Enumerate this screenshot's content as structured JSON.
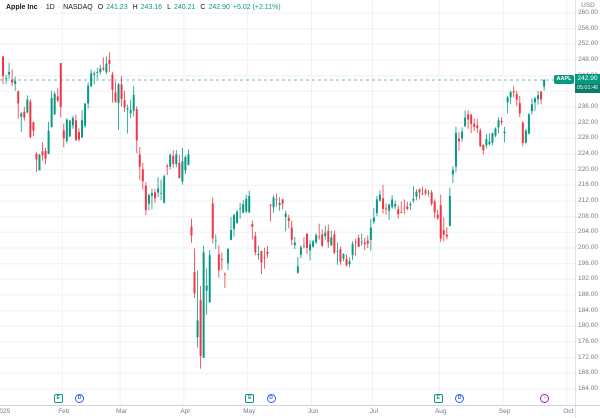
{
  "header": {
    "name": "Apple Inc",
    "separator": "·",
    "timeframe": "1D",
    "exchange": "NASDAQ",
    "ohlc": [
      {
        "k": "O",
        "v": "241.23"
      },
      {
        "k": "H",
        "v": "243.16"
      },
      {
        "k": "L",
        "v": "240.21"
      },
      {
        "k": "C",
        "v": "242.90"
      }
    ],
    "change": "+5.02 (+2.11%)"
  },
  "quote": {
    "symbol": "AAPL",
    "last": "242.90",
    "countdown": "05:01:46",
    "currency": "USD",
    "direction": "up"
  },
  "colors": {
    "up": "#089981",
    "down": "#f23645",
    "grid": "#eef1f6",
    "axis_text": "#787b86",
    "price_line": "#089981",
    "tag_bg": "#089981"
  },
  "chart_data": {
    "type": "candlestick",
    "title": "Apple Inc · 1D · NASDAQ",
    "symbol": "AAPL",
    "currency": "USD",
    "ylim": [
      164,
      263
    ],
    "grid": true,
    "last_price": 242.9,
    "y_ticks": [
      260,
      256,
      252,
      248,
      244,
      240,
      236,
      232,
      228,
      224,
      220,
      216,
      212,
      208,
      204,
      200,
      196,
      192,
      188,
      184,
      180,
      176,
      172,
      168,
      164
    ],
    "x_ticks": [
      {
        "label": "2025",
        "index": 0,
        "gridline": false
      },
      {
        "label": "Feb",
        "index": 20,
        "gridline": true
      },
      {
        "label": "Mar",
        "index": 39,
        "gridline": true
      },
      {
        "label": "Apr",
        "index": 60,
        "gridline": true
      },
      {
        "label": "May",
        "index": 81,
        "gridline": true
      },
      {
        "label": "Jun",
        "index": 102,
        "gridline": true
      },
      {
        "label": "Jul",
        "index": 122,
        "gridline": true
      },
      {
        "label": "Aug",
        "index": 144,
        "gridline": true
      },
      {
        "label": "Sep",
        "index": 165,
        "gridline": true
      },
      {
        "label": "Oct",
        "index": 186,
        "gridline": true
      }
    ],
    "events": [
      {
        "type": "earnings",
        "index": 18
      },
      {
        "type": "dividend",
        "index": 25
      },
      {
        "type": "earnings",
        "index": 81
      },
      {
        "type": "dividend",
        "index": 88
      },
      {
        "type": "earnings",
        "index": 143
      },
      {
        "type": "dividend",
        "index": 150
      },
      {
        "type": "upcoming-earnings",
        "index": 178
      }
    ],
    "candles": [
      [
        "Jan 2",
        248.9,
        249.1,
        241.8,
        243.9
      ],
      [
        "Jan 3",
        243.4,
        244.2,
        241.9,
        243.4
      ],
      [
        "Jan 6",
        244.3,
        247.3,
        243.2,
        245.0
      ],
      [
        "Jan 7",
        243.0,
        245.6,
        241.4,
        242.2
      ],
      [
        "Jan 8",
        241.9,
        243.7,
        240.1,
        242.7
      ],
      [
        "Jan 10",
        240.0,
        240.2,
        233.0,
        236.9
      ],
      [
        "Jan 13",
        233.5,
        234.7,
        229.7,
        234.4
      ],
      [
        "Jan 14",
        234.8,
        236.1,
        232.5,
        233.3
      ],
      [
        "Jan 15",
        234.6,
        239.0,
        234.4,
        237.9
      ],
      [
        "Jan 16",
        237.4,
        238.0,
        228.0,
        228.3
      ],
      [
        "Jan 17",
        232.1,
        232.3,
        228.5,
        230.0
      ],
      [
        "Jan 21",
        224.0,
        224.4,
        219.4,
        222.6
      ],
      [
        "Jan 22",
        219.8,
        224.1,
        219.8,
        223.8
      ],
      [
        "Jan 23",
        224.7,
        227.0,
        222.3,
        223.7
      ],
      [
        "Jan 24",
        224.8,
        225.6,
        221.4,
        222.8
      ],
      [
        "Jan 27",
        224.0,
        232.2,
        224.0,
        229.9
      ],
      [
        "Jan 28",
        230.9,
        240.2,
        230.8,
        238.3
      ],
      [
        "Jan 29",
        234.1,
        239.9,
        234.0,
        239.4
      ],
      [
        "Jan 30",
        238.7,
        240.8,
        237.2,
        237.6
      ],
      [
        "Jan 31",
        247.2,
        247.2,
        233.4,
        236.0
      ],
      [
        "Feb 3",
        230.0,
        231.8,
        225.7,
        228.0
      ],
      [
        "Feb 4",
        227.3,
        233.1,
        226.7,
        232.8
      ],
      [
        "Feb 5",
        228.5,
        232.7,
        228.3,
        232.5
      ],
      [
        "Feb 6",
        231.3,
        233.8,
        230.4,
        233.2
      ],
      [
        "Feb 7",
        232.6,
        234.0,
        227.3,
        227.6
      ],
      [
        "Feb 10",
        229.6,
        230.6,
        227.2,
        227.7
      ],
      [
        "Feb 11",
        228.2,
        235.2,
        228.1,
        232.6
      ],
      [
        "Feb 12",
        231.2,
        237.0,
        230.7,
        236.9
      ],
      [
        "Feb 13",
        236.9,
        242.3,
        235.6,
        241.5
      ],
      [
        "Feb 14",
        241.3,
        245.6,
        241.0,
        244.6
      ],
      [
        "Feb 18",
        244.2,
        245.2,
        241.8,
        244.5
      ],
      [
        "Feb 19",
        244.7,
        246.0,
        243.2,
        244.9
      ],
      [
        "Feb 20",
        244.9,
        246.8,
        244.3,
        245.8
      ],
      [
        "Feb 21",
        246.0,
        248.7,
        245.2,
        245.6
      ],
      [
        "Feb 24",
        244.9,
        248.9,
        244.4,
        247.1
      ],
      [
        "Feb 25",
        248.0,
        250.0,
        244.9,
        247.0
      ],
      [
        "Feb 26",
        244.3,
        245.0,
        237.1,
        240.4
      ],
      [
        "Feb 27",
        239.7,
        242.5,
        237.1,
        237.3
      ],
      [
        "Feb 28",
        237.0,
        242.1,
        230.2,
        241.8
      ],
      [
        "Mar 3",
        241.8,
        244.0,
        236.1,
        238.0
      ],
      [
        "Mar 4",
        237.7,
        240.1,
        234.7,
        235.9
      ],
      [
        "Mar 5",
        235.4,
        236.6,
        229.2,
        235.7
      ],
      [
        "Mar 6",
        234.4,
        237.9,
        233.2,
        235.3
      ],
      [
        "Mar 7",
        235.1,
        241.4,
        233.6,
        239.1
      ],
      [
        "Mar 10",
        235.5,
        236.2,
        224.2,
        227.5
      ],
      [
        "Mar 11",
        223.8,
        225.8,
        217.4,
        220.8
      ],
      [
        "Mar 12",
        220.1,
        221.8,
        214.9,
        217.0
      ],
      [
        "Mar 13",
        215.9,
        216.8,
        208.4,
        209.7
      ],
      [
        "Mar 14",
        211.3,
        213.9,
        209.6,
        213.5
      ],
      [
        "Mar 17",
        213.3,
        215.2,
        209.9,
        214.0
      ],
      [
        "Mar 18",
        214.2,
        215.1,
        211.5,
        212.7
      ],
      [
        "Mar 19",
        214.2,
        218.1,
        213.0,
        215.2
      ],
      [
        "Mar 20",
        214.0,
        217.5,
        212.2,
        214.1
      ],
      [
        "Mar 21",
        211.6,
        218.8,
        211.3,
        218.3
      ],
      [
        "Mar 24",
        221.0,
        221.5,
        218.6,
        220.7
      ],
      [
        "Mar 25",
        220.8,
        224.1,
        220.1,
        223.8
      ],
      [
        "Mar 26",
        223.5,
        225.0,
        220.5,
        221.5
      ],
      [
        "Mar 27",
        221.4,
        225.0,
        220.6,
        223.9
      ],
      [
        "Mar 28",
        221.7,
        223.8,
        217.7,
        217.9
      ],
      [
        "Mar 31",
        217.0,
        225.6,
        216.2,
        222.1
      ],
      [
        "Apr 1",
        219.8,
        223.7,
        218.9,
        223.2
      ],
      [
        "Apr 2",
        221.3,
        225.2,
        221.0,
        223.9
      ],
      [
        "Apr 3",
        205.5,
        207.5,
        201.3,
        203.2
      ],
      [
        "Apr 4",
        193.9,
        199.9,
        187.3,
        188.4
      ],
      [
        "Apr 7",
        177.2,
        194.2,
        174.6,
        181.5
      ],
      [
        "Apr 8",
        186.7,
        190.3,
        169.2,
        172.4
      ],
      [
        "Apr 9",
        172.0,
        200.6,
        171.9,
        198.9
      ],
      [
        "Apr 10",
        189.1,
        194.8,
        183.0,
        190.4
      ],
      [
        "Apr 11",
        186.1,
        199.5,
        186.1,
        198.2
      ],
      [
        "Apr 14",
        211.4,
        212.9,
        201.2,
        202.5
      ],
      [
        "Apr 15",
        201.9,
        203.5,
        199.8,
        202.1
      ],
      [
        "Apr 16",
        198.4,
        200.7,
        192.4,
        194.3
      ],
      [
        "Apr 17",
        197.2,
        198.8,
        194.4,
        197.0
      ],
      [
        "Apr 21",
        193.3,
        193.8,
        189.8,
        193.2
      ],
      [
        "Apr 22",
        196.1,
        200.0,
        194.4,
        199.7
      ],
      [
        "Apr 23",
        202.1,
        208.0,
        202.0,
        204.6
      ],
      [
        "Apr 24",
        204.9,
        208.8,
        202.9,
        208.4
      ],
      [
        "Apr 25",
        206.4,
        209.8,
        206.2,
        209.3
      ],
      [
        "Apr 28",
        210.0,
        211.5,
        207.5,
        210.1
      ],
      [
        "Apr 29",
        209.0,
        212.2,
        208.9,
        211.2
      ],
      [
        "Apr 30",
        209.3,
        213.6,
        208.9,
        212.5
      ],
      [
        "May 1",
        209.1,
        214.6,
        208.9,
        213.3
      ],
      [
        "May 2",
        206.1,
        207.0,
        202.2,
        205.4
      ],
      [
        "May 5",
        203.1,
        204.1,
        198.2,
        198.9
      ],
      [
        "May 6",
        198.2,
        200.6,
        197.0,
        198.5
      ],
      [
        "May 7",
        199.2,
        199.4,
        193.3,
        196.3
      ],
      [
        "May 8",
        197.7,
        200.1,
        194.7,
        197.5
      ],
      [
        "May 9",
        199.0,
        200.5,
        197.5,
        198.5
      ],
      [
        "May 12",
        211.0,
        211.3,
        206.8,
        210.8
      ],
      [
        "May 13",
        210.4,
        213.4,
        209.0,
        212.9
      ],
      [
        "May 14",
        212.4,
        213.9,
        210.6,
        212.3
      ],
      [
        "May 15",
        211.0,
        213.0,
        209.5,
        211.5
      ],
      [
        "May 16",
        212.4,
        212.6,
        209.8,
        211.3
      ],
      [
        "May 19",
        207.9,
        209.5,
        204.3,
        208.8
      ],
      [
        "May 20",
        207.7,
        208.5,
        205.0,
        206.9
      ],
      [
        "May 21",
        205.2,
        207.0,
        200.7,
        202.1
      ],
      [
        "May 22",
        200.7,
        202.8,
        199.7,
        201.4
      ],
      [
        "May 23",
        193.7,
        197.7,
        193.5,
        195.3
      ],
      [
        "May 27",
        198.3,
        200.7,
        197.4,
        200.2
      ],
      [
        "May 28",
        200.6,
        202.7,
        199.9,
        200.4
      ],
      [
        "May 29",
        203.6,
        203.8,
        198.5,
        200.0
      ],
      [
        "May 30",
        199.4,
        202.0,
        196.8,
        200.9
      ],
      [
        "Jun 2",
        200.3,
        202.1,
        200.1,
        201.7
      ],
      [
        "Jun 3",
        201.4,
        203.8,
        201.0,
        203.3
      ],
      [
        "Jun 4",
        202.9,
        206.2,
        202.1,
        202.8
      ],
      [
        "Jun 5",
        203.5,
        204.8,
        200.2,
        200.6
      ],
      [
        "Jun 6",
        203.0,
        205.7,
        202.1,
        203.9
      ],
      [
        "Jun 9",
        204.4,
        206.0,
        200.0,
        201.5
      ],
      [
        "Jun 10",
        200.6,
        204.4,
        200.6,
        202.7
      ],
      [
        "Jun 11",
        203.5,
        204.5,
        198.4,
        198.8
      ],
      [
        "Jun 12",
        199.1,
        201.4,
        195.7,
        199.2
      ],
      [
        "Jun 13",
        199.7,
        200.4,
        195.7,
        196.5
      ],
      [
        "Jun 16",
        197.3,
        198.7,
        196.6,
        198.4
      ],
      [
        "Jun 17",
        197.2,
        198.4,
        195.2,
        195.6
      ],
      [
        "Jun 18",
        195.9,
        197.6,
        195.1,
        196.6
      ],
      [
        "Jun 20",
        198.2,
        201.7,
        196.9,
        201.0
      ],
      [
        "Jun 23",
        201.6,
        202.3,
        198.0,
        201.5
      ],
      [
        "Jun 24",
        202.6,
        203.4,
        200.2,
        200.3
      ],
      [
        "Jun 25",
        201.5,
        203.7,
        200.6,
        201.6
      ],
      [
        "Jun 26",
        201.4,
        202.6,
        199.5,
        201.0
      ],
      [
        "Jun 27",
        201.9,
        203.2,
        200.0,
        201.1
      ],
      [
        "Jun 30",
        202.0,
        207.4,
        199.3,
        205.2
      ],
      [
        "Jul 1",
        206.7,
        210.2,
        206.1,
        207.8
      ],
      [
        "Jul 2",
        208.9,
        213.3,
        208.1,
        212.4
      ],
      [
        "Jul 3",
        212.1,
        214.7,
        211.8,
        213.6
      ],
      [
        "Jul 7",
        212.7,
        216.2,
        208.8,
        210.0
      ],
      [
        "Jul 8",
        210.1,
        211.4,
        208.5,
        210.0
      ],
      [
        "Jul 9",
        209.5,
        211.3,
        207.2,
        211.1
      ],
      [
        "Jul 10",
        210.5,
        213.5,
        210.0,
        212.4
      ],
      [
        "Jul 11",
        210.6,
        212.1,
        209.9,
        211.2
      ],
      [
        "Jul 14",
        209.9,
        210.9,
        207.5,
        208.6
      ],
      [
        "Jul 15",
        209.2,
        211.9,
        208.9,
        209.1
      ],
      [
        "Jul 16",
        210.3,
        212.4,
        208.6,
        210.2
      ],
      [
        "Jul 17",
        210.6,
        211.8,
        209.6,
        210.0
      ],
      [
        "Jul 18",
        210.9,
        211.8,
        209.7,
        211.2
      ],
      [
        "Jul 21",
        212.1,
        215.8,
        211.6,
        212.5
      ],
      [
        "Jul 22",
        213.1,
        215.0,
        212.2,
        214.4
      ],
      [
        "Jul 23",
        215.0,
        215.2,
        212.4,
        214.2
      ],
      [
        "Jul 24",
        213.9,
        215.7,
        213.5,
        213.8
      ],
      [
        "Jul 25",
        214.7,
        215.2,
        213.4,
        213.9
      ],
      [
        "Jul 28",
        214.0,
        214.9,
        213.1,
        214.1
      ],
      [
        "Jul 29",
        214.2,
        214.8,
        210.8,
        211.3
      ],
      [
        "Jul 30",
        211.9,
        212.4,
        207.6,
        209.1
      ],
      [
        "Jul 31",
        208.5,
        209.8,
        207.2,
        207.6
      ],
      [
        "Aug 1",
        210.9,
        213.6,
        201.5,
        202.4
      ],
      [
        "Aug 4",
        204.5,
        207.9,
        201.7,
        203.4
      ],
      [
        "Aug 5",
        203.4,
        205.3,
        202.2,
        202.9
      ],
      [
        "Aug 6",
        205.6,
        215.4,
        205.6,
        213.3
      ],
      [
        "Aug 7",
        218.8,
        220.9,
        216.6,
        220.0
      ],
      [
        "Aug 8",
        220.8,
        231.0,
        219.3,
        229.4
      ],
      [
        "Aug 11",
        227.9,
        229.6,
        224.8,
        227.2
      ],
      [
        "Aug 12",
        228.0,
        230.8,
        227.1,
        229.7
      ],
      [
        "Aug 13",
        231.1,
        235.1,
        230.9,
        233.3
      ],
      [
        "Aug 14",
        234.1,
        235.1,
        230.4,
        232.8
      ],
      [
        "Aug 15",
        234.0,
        234.3,
        229.3,
        231.6
      ],
      [
        "Aug 18",
        231.7,
        233.1,
        229.9,
        230.9
      ],
      [
        "Aug 19",
        231.3,
        232.9,
        229.4,
        230.6
      ],
      [
        "Aug 20",
        230.0,
        230.5,
        225.8,
        226.0
      ],
      [
        "Aug 21",
        226.3,
        226.5,
        223.8,
        224.9
      ],
      [
        "Aug 22",
        226.2,
        229.1,
        225.4,
        227.8
      ],
      [
        "Aug 25",
        226.5,
        229.3,
        226.2,
        227.2
      ],
      [
        "Aug 26",
        226.9,
        229.5,
        226.2,
        229.3
      ],
      [
        "Aug 27",
        228.7,
        230.8,
        228.3,
        230.5
      ],
      [
        "Aug 28",
        230.8,
        233.4,
        229.3,
        232.6
      ],
      [
        "Aug 29",
        232.5,
        233.4,
        231.4,
        232.1
      ],
      [
        "Sep 2",
        229.3,
        230.9,
        227.0,
        229.7
      ],
      [
        "Sep 3",
        237.2,
        238.8,
        234.4,
        238.5
      ],
      [
        "Sep 4",
        238.5,
        240.2,
        236.7,
        239.8
      ],
      [
        "Sep 5",
        240.0,
        241.3,
        238.5,
        239.7
      ],
      [
        "Sep 8",
        239.3,
        240.1,
        236.3,
        237.9
      ],
      [
        "Sep 9",
        237.0,
        238.8,
        233.4,
        234.4
      ],
      [
        "Sep 10",
        232.0,
        232.4,
        226.0,
        226.8
      ],
      [
        "Sep 11",
        226.9,
        230.5,
        226.6,
        230.0
      ],
      [
        "Sep 12",
        229.2,
        234.5,
        229.0,
        234.1
      ],
      [
        "Sep 15",
        235.0,
        238.2,
        234.0,
        236.7
      ],
      [
        "Sep 16",
        237.2,
        238.6,
        235.0,
        238.2
      ],
      [
        "Sep 17",
        238.0,
        240.1,
        236.6,
        239.0
      ],
      [
        "Sep 18",
        239.9,
        240.1,
        236.7,
        237.9
      ],
      [
        "Sep 19",
        241.2,
        243.2,
        240.2,
        242.9
      ]
    ]
  }
}
